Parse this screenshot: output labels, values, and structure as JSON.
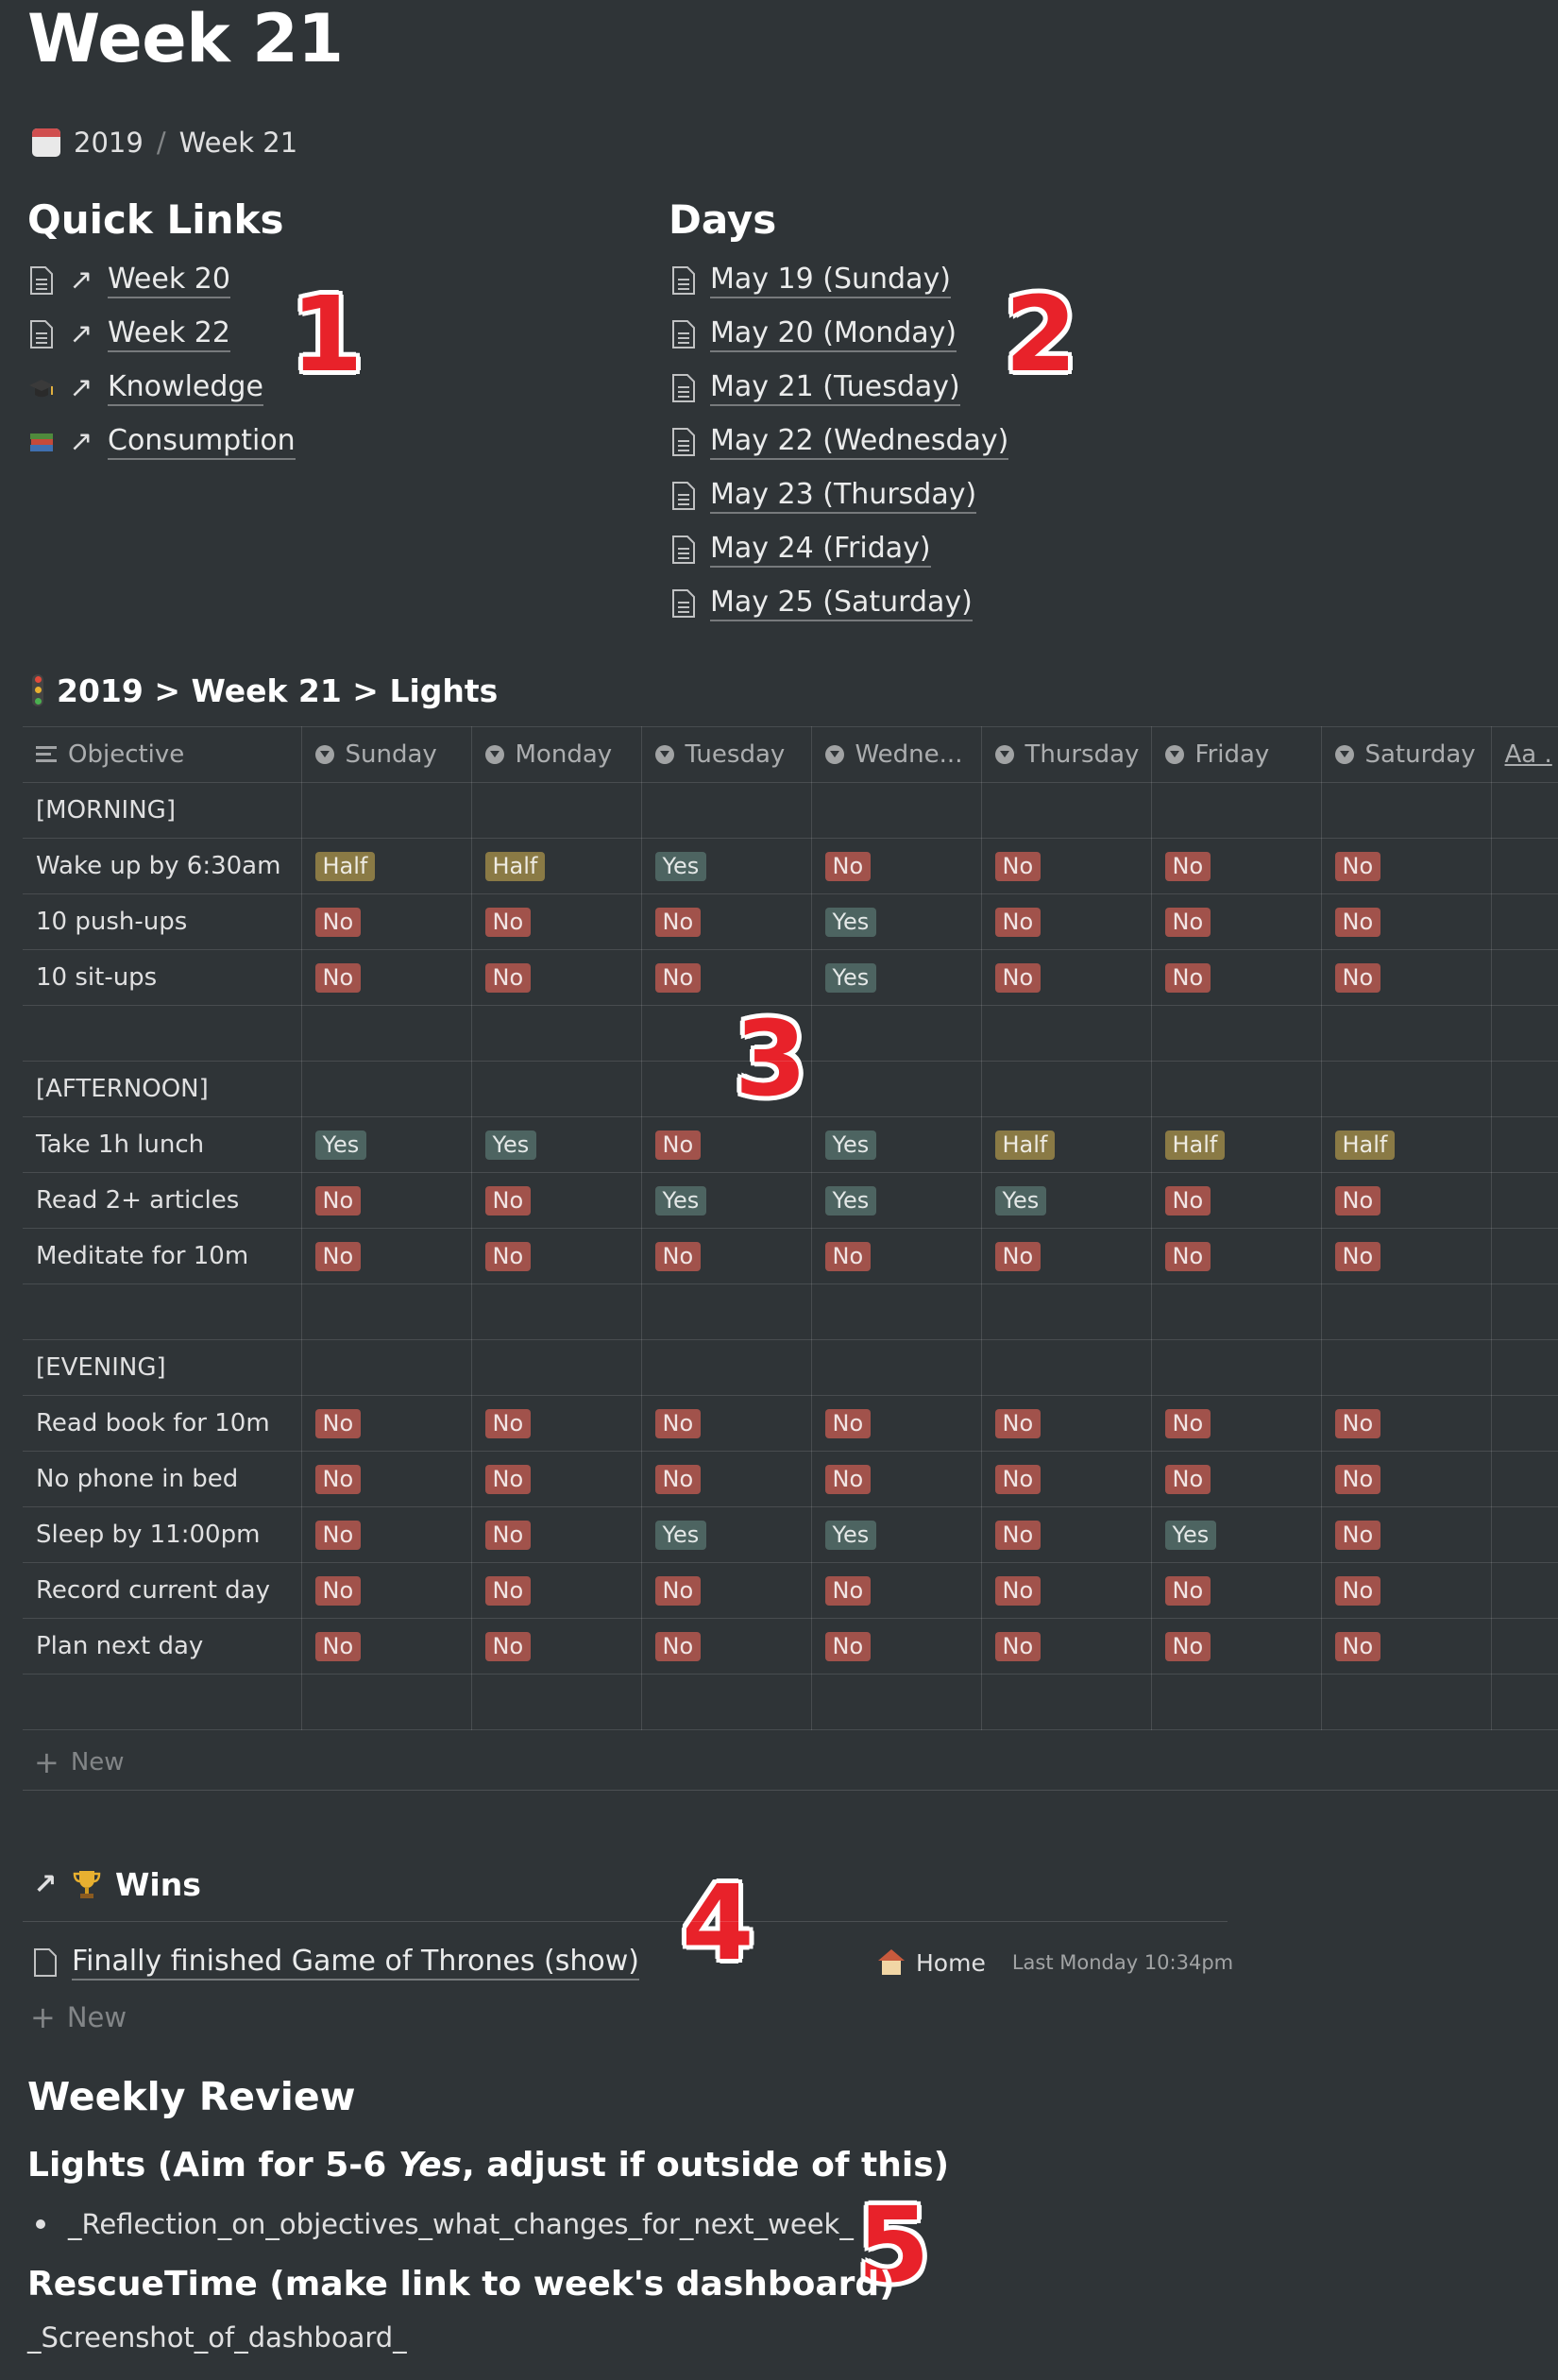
{
  "page": {
    "title": "Week 21"
  },
  "breadcrumb": {
    "parent": "2019",
    "separator": "/",
    "current": "Week 21"
  },
  "quick_links": {
    "heading": "Quick Links",
    "items": [
      {
        "label": "Week 20",
        "icon": "page-icon"
      },
      {
        "label": "Week 22",
        "icon": "page-icon"
      },
      {
        "label": "Knowledge",
        "icon": "graduation-cap-icon"
      },
      {
        "label": "Consumption",
        "icon": "books-icon"
      }
    ]
  },
  "days": {
    "heading": "Days",
    "items": [
      {
        "label": "May 19 (Sunday)"
      },
      {
        "label": "May 20 (Monday)"
      },
      {
        "label": "May 21 (Tuesday)"
      },
      {
        "label": "May 22 (Wednesday)"
      },
      {
        "label": "May 23 (Thursday)"
      },
      {
        "label": "May 24 (Friday)"
      },
      {
        "label": "May 25 (Saturday)"
      }
    ]
  },
  "annotations": [
    "1",
    "2",
    "3",
    "4",
    "5"
  ],
  "lights_db": {
    "title": "2019 > Week 21 >  Lights",
    "columns": [
      "Objective",
      "Sunday",
      "Monday",
      "Tuesday",
      "Wedne...",
      "Thursday",
      "Friday",
      "Saturday",
      "Aa ."
    ],
    "rows": [
      {
        "objective": "[MORNING]",
        "values": [
          "",
          "",
          "",
          "",
          "",
          "",
          ""
        ]
      },
      {
        "objective": "Wake up by 6:30am",
        "values": [
          "Half",
          "Half",
          "Yes",
          "No",
          "No",
          "No",
          "No"
        ]
      },
      {
        "objective": "10 push-ups",
        "values": [
          "No",
          "No",
          "No",
          "Yes",
          "No",
          "No",
          "No"
        ]
      },
      {
        "objective": "10 sit-ups",
        "values": [
          "No",
          "No",
          "No",
          "Yes",
          "No",
          "No",
          "No"
        ]
      },
      {
        "objective": "",
        "values": [
          "",
          "",
          "",
          "",
          "",
          "",
          ""
        ]
      },
      {
        "objective": "[AFTERNOON]",
        "values": [
          "",
          "",
          "",
          "",
          "",
          "",
          ""
        ]
      },
      {
        "objective": "Take 1h lunch",
        "values": [
          "Yes",
          "Yes",
          "No",
          "Yes",
          "Half",
          "Half",
          "Half"
        ]
      },
      {
        "objective": "Read 2+ articles",
        "values": [
          "No",
          "No",
          "Yes",
          "Yes",
          "Yes",
          "No",
          "No"
        ]
      },
      {
        "objective": "Meditate for 10m",
        "values": [
          "No",
          "No",
          "No",
          "No",
          "No",
          "No",
          "No"
        ]
      },
      {
        "objective": "",
        "values": [
          "",
          "",
          "",
          "",
          "",
          "",
          ""
        ]
      },
      {
        "objective": "[EVENING]",
        "values": [
          "",
          "",
          "",
          "",
          "",
          "",
          ""
        ]
      },
      {
        "objective": "Read book for 10m",
        "values": [
          "No",
          "No",
          "No",
          "No",
          "No",
          "No",
          "No"
        ]
      },
      {
        "objective": "No phone in bed",
        "values": [
          "No",
          "No",
          "No",
          "No",
          "No",
          "No",
          "No"
        ]
      },
      {
        "objective": "Sleep by 11:00pm",
        "values": [
          "No",
          "No",
          "Yes",
          "Yes",
          "No",
          "Yes",
          "No"
        ]
      },
      {
        "objective": "Record current day",
        "values": [
          "No",
          "No",
          "No",
          "No",
          "No",
          "No",
          "No"
        ]
      },
      {
        "objective": "Plan next day",
        "values": [
          "No",
          "No",
          "No",
          "No",
          "No",
          "No",
          "No"
        ]
      },
      {
        "objective": "",
        "values": [
          "",
          "",
          "",
          "",
          "",
          "",
          ""
        ]
      }
    ],
    "new_label": "New",
    "tag_colors": {
      "Yes": "#4d6461",
      "No": "#a1524b",
      "Half": "#8a7a45"
    }
  },
  "wins": {
    "title": "Wins",
    "items": [
      {
        "title": "Finally finished Game of Thrones (show)",
        "category": "Home",
        "time": "Last Monday 10:34pm"
      }
    ],
    "new_label": "New"
  },
  "review": {
    "heading": "Weekly Review",
    "lights_heading_pre": "Lights (Aim for 5-6 ",
    "lights_heading_em": "Yes",
    "lights_heading_post": ", adjust if outside of this)",
    "lights_bullet": "_Reflection_on_objectives_what_changes_for_next_week_",
    "rescuetime_heading": "RescueTime (make link to week's dashboard)",
    "rescuetime_text": "_Screenshot_of_dashboard_"
  }
}
